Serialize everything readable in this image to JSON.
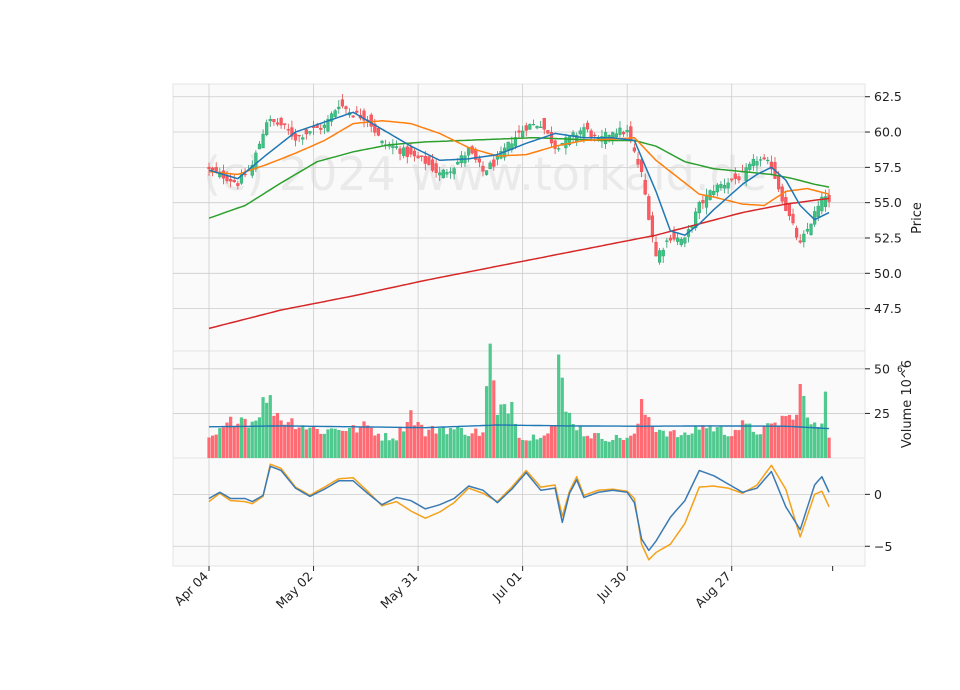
{
  "chart_data": {
    "type": "candlestick",
    "watermark": "(c) 2024 www.torkaid.de",
    "x_tick_labels": [
      "Apr 04",
      "May 02",
      "May 31",
      "Jul 01",
      "Jul 30",
      "Aug 27"
    ],
    "x_tick_index": [
      0,
      29,
      58,
      87,
      116,
      145
    ],
    "n_bars": 173,
    "colors": {
      "up": "#26a69a",
      "up_fill": "#3cc382",
      "down": "#ef5350",
      "down_fill": "#ff5a64",
      "ma_fast": "#1f77b4",
      "ma_mid": "#ff7f0e",
      "ma_slow": "#2ca02c",
      "ma_long": "#d62728",
      "osc_a": "#3b7ab3",
      "osc_b": "#f5a11a",
      "grid": "#cccccc",
      "panel_bg": "#fafafa"
    },
    "price_panel": {
      "ylabel": "Price",
      "ylim": [
        44.5,
        63.4
      ],
      "ticks": [
        62.5,
        60.0,
        57.5,
        55.0,
        52.5,
        50.0,
        47.5
      ],
      "tick_labels": [
        "62.5",
        "60.0",
        "57.5",
        "55.0",
        "52.5",
        "50.0",
        "47.5"
      ],
      "close_keyframes": [
        [
          0,
          57.3
        ],
        [
          4,
          56.9
        ],
        [
          8,
          56.4
        ],
        [
          12,
          57.6
        ],
        [
          16,
          60.8
        ],
        [
          20,
          60.5
        ],
        [
          24,
          59.6
        ],
        [
          28,
          60.1
        ],
        [
          32,
          60.4
        ],
        [
          36,
          62.0
        ],
        [
          40,
          61.3
        ],
        [
          44,
          61.0
        ],
        [
          48,
          59.2
        ],
        [
          52,
          58.9
        ],
        [
          56,
          58.3
        ],
        [
          60,
          57.9
        ],
        [
          64,
          57.0
        ],
        [
          68,
          57.6
        ],
        [
          72,
          58.7
        ],
        [
          76,
          57.2
        ],
        [
          80,
          58.0
        ],
        [
          84,
          59.4
        ],
        [
          88,
          60.4
        ],
        [
          92,
          60.6
        ],
        [
          96,
          59.0
        ],
        [
          100,
          59.5
        ],
        [
          104,
          60.3
        ],
        [
          108,
          59.3
        ],
        [
          112,
          60.1
        ],
        [
          116,
          60.0
        ],
        [
          120,
          57.0
        ],
        [
          124,
          51.2
        ],
        [
          128,
          52.6
        ],
        [
          132,
          52.3
        ],
        [
          136,
          54.8
        ],
        [
          140,
          56.0
        ],
        [
          144,
          56.5
        ],
        [
          148,
          56.9
        ],
        [
          152,
          58.1
        ],
        [
          156,
          57.6
        ],
        [
          160,
          54.6
        ],
        [
          164,
          52.0
        ],
        [
          168,
          54.2
        ],
        [
          171,
          55.6
        ],
        [
          172,
          54.9
        ]
      ],
      "ma_fast_keyframes": [
        [
          0,
          57.3
        ],
        [
          8,
          56.7
        ],
        [
          16,
          58.4
        ],
        [
          24,
          60.0
        ],
        [
          32,
          60.7
        ],
        [
          40,
          61.4
        ],
        [
          48,
          60.2
        ],
        [
          56,
          59.0
        ],
        [
          64,
          58.0
        ],
        [
          72,
          58.1
        ],
        [
          80,
          58.4
        ],
        [
          88,
          59.2
        ],
        [
          96,
          59.9
        ],
        [
          104,
          59.6
        ],
        [
          112,
          59.6
        ],
        [
          118,
          59.4
        ],
        [
          124,
          55.8
        ],
        [
          128,
          53.0
        ],
        [
          132,
          52.7
        ],
        [
          136,
          53.5
        ],
        [
          140,
          54.5
        ],
        [
          144,
          55.4
        ],
        [
          148,
          56.3
        ],
        [
          152,
          57.0
        ],
        [
          156,
          57.5
        ],
        [
          160,
          56.6
        ],
        [
          164,
          54.8
        ],
        [
          168,
          53.8
        ],
        [
          172,
          54.3
        ]
      ],
      "ma_mid_keyframes": [
        [
          0,
          57.2
        ],
        [
          8,
          57.0
        ],
        [
          16,
          57.7
        ],
        [
          24,
          58.5
        ],
        [
          32,
          59.4
        ],
        [
          40,
          60.6
        ],
        [
          48,
          60.8
        ],
        [
          56,
          60.6
        ],
        [
          64,
          59.9
        ],
        [
          72,
          58.9
        ],
        [
          80,
          58.3
        ],
        [
          88,
          58.4
        ],
        [
          96,
          59.0
        ],
        [
          104,
          59.4
        ],
        [
          112,
          59.5
        ],
        [
          118,
          59.6
        ],
        [
          124,
          58.0
        ],
        [
          130,
          56.8
        ],
        [
          136,
          55.6
        ],
        [
          140,
          55.4
        ],
        [
          148,
          54.9
        ],
        [
          154,
          54.8
        ],
        [
          160,
          55.8
        ],
        [
          166,
          56.0
        ],
        [
          172,
          55.6
        ]
      ],
      "ma_slow_keyframes": [
        [
          0,
          53.9
        ],
        [
          10,
          54.8
        ],
        [
          20,
          56.4
        ],
        [
          30,
          57.9
        ],
        [
          40,
          58.6
        ],
        [
          50,
          59.1
        ],
        [
          60,
          59.3
        ],
        [
          70,
          59.4
        ],
        [
          80,
          59.5
        ],
        [
          90,
          59.6
        ],
        [
          100,
          59.5
        ],
        [
          110,
          59.4
        ],
        [
          118,
          59.4
        ],
        [
          124,
          59.0
        ],
        [
          132,
          57.9
        ],
        [
          140,
          57.4
        ],
        [
          148,
          57.2
        ],
        [
          156,
          57.0
        ],
        [
          162,
          56.7
        ],
        [
          168,
          56.3
        ],
        [
          172,
          56.1
        ]
      ],
      "ma_long_keyframes": [
        [
          0,
          46.1
        ],
        [
          20,
          47.4
        ],
        [
          40,
          48.4
        ],
        [
          60,
          49.5
        ],
        [
          80,
          50.5
        ],
        [
          100,
          51.5
        ],
        [
          112,
          52.1
        ],
        [
          124,
          52.7
        ],
        [
          136,
          53.5
        ],
        [
          148,
          54.3
        ],
        [
          160,
          54.9
        ],
        [
          172,
          55.3
        ]
      ]
    },
    "volume_panel": {
      "ylabel": "Volume  10^6",
      "ylim": [
        0,
        60
      ],
      "ticks": [
        50,
        25
      ],
      "tick_labels": [
        "50",
        "25"
      ],
      "volume_keyframes": [
        [
          0,
          10
        ],
        [
          4,
          16
        ],
        [
          8,
          24
        ],
        [
          12,
          20
        ],
        [
          16,
          34
        ],
        [
          20,
          22
        ],
        [
          24,
          20
        ],
        [
          28,
          17
        ],
        [
          32,
          15
        ],
        [
          36,
          17
        ],
        [
          40,
          16
        ],
        [
          44,
          18
        ],
        [
          48,
          12
        ],
        [
          52,
          12
        ],
        [
          56,
          25
        ],
        [
          60,
          14
        ],
        [
          64,
          17
        ],
        [
          68,
          16
        ],
        [
          72,
          15
        ],
        [
          76,
          14
        ],
        [
          78,
          60
        ],
        [
          80,
          22
        ],
        [
          82,
          30
        ],
        [
          84,
          31
        ],
        [
          86,
          14
        ],
        [
          88,
          10
        ],
        [
          92,
          14
        ],
        [
          96,
          19
        ],
        [
          97,
          53
        ],
        [
          99,
          26
        ],
        [
          104,
          14
        ],
        [
          108,
          12
        ],
        [
          112,
          11
        ],
        [
          118,
          12
        ],
        [
          120,
          28
        ],
        [
          124,
          17
        ],
        [
          128,
          14
        ],
        [
          132,
          12
        ],
        [
          136,
          18
        ],
        [
          140,
          17
        ],
        [
          144,
          14
        ],
        [
          148,
          18
        ],
        [
          152,
          15
        ],
        [
          156,
          17
        ],
        [
          160,
          24
        ],
        [
          162,
          20
        ],
        [
          164,
          40
        ],
        [
          166,
          22
        ],
        [
          168,
          17
        ],
        [
          170,
          21
        ],
        [
          171,
          43
        ],
        [
          172,
          14
        ]
      ],
      "avg_keyframes": [
        [
          0,
          17.5
        ],
        [
          20,
          18.0
        ],
        [
          40,
          17.5
        ],
        [
          60,
          17.0
        ],
        [
          80,
          18.5
        ],
        [
          100,
          18.0
        ],
        [
          120,
          17.8
        ],
        [
          140,
          18.0
        ],
        [
          160,
          17.8
        ],
        [
          172,
          16.5
        ]
      ]
    },
    "oscillator_panel": {
      "ylim": [
        -6.9,
        3.5
      ],
      "ticks": [
        0,
        -5
      ],
      "tick_labels": [
        "0",
        "−5"
      ],
      "osc_a_keyframes": [
        [
          0,
          -0.4
        ],
        [
          3,
          0.2
        ],
        [
          6,
          -0.4
        ],
        [
          10,
          -0.4
        ],
        [
          12,
          -0.7
        ],
        [
          15,
          -0.1
        ],
        [
          17,
          2.7
        ],
        [
          20,
          2.3
        ],
        [
          24,
          0.6
        ],
        [
          28,
          -0.2
        ],
        [
          32,
          0.5
        ],
        [
          36,
          1.3
        ],
        [
          40,
          1.3
        ],
        [
          44,
          0.1
        ],
        [
          48,
          -1.0
        ],
        [
          52,
          -0.3
        ],
        [
          56,
          -0.6
        ],
        [
          60,
          -1.4
        ],
        [
          64,
          -1.0
        ],
        [
          68,
          -0.4
        ],
        [
          72,
          0.8
        ],
        [
          76,
          0.4
        ],
        [
          80,
          -0.8
        ],
        [
          84,
          0.5
        ],
        [
          88,
          2.1
        ],
        [
          92,
          0.4
        ],
        [
          96,
          0.6
        ],
        [
          98,
          -2.7
        ],
        [
          100,
          0.1
        ],
        [
          102,
          1.4
        ],
        [
          104,
          -0.3
        ],
        [
          108,
          0.2
        ],
        [
          112,
          0.4
        ],
        [
          116,
          0.2
        ],
        [
          118,
          -0.8
        ],
        [
          120,
          -4.3
        ],
        [
          122,
          -5.4
        ],
        [
          124,
          -4.5
        ],
        [
          128,
          -2.2
        ],
        [
          132,
          -0.6
        ],
        [
          136,
          2.3
        ],
        [
          140,
          1.8
        ],
        [
          144,
          1.0
        ],
        [
          148,
          0.2
        ],
        [
          152,
          0.6
        ],
        [
          156,
          2.2
        ],
        [
          160,
          -1.2
        ],
        [
          164,
          -3.4
        ],
        [
          168,
          0.9
        ],
        [
          170,
          1.7
        ],
        [
          172,
          0.2
        ]
      ],
      "osc_b_keyframes": [
        [
          0,
          -0.7
        ],
        [
          3,
          0.1
        ],
        [
          6,
          -0.6
        ],
        [
          10,
          -0.7
        ],
        [
          12,
          -0.9
        ],
        [
          15,
          -0.2
        ],
        [
          17,
          2.9
        ],
        [
          20,
          2.5
        ],
        [
          24,
          0.7
        ],
        [
          28,
          -0.1
        ],
        [
          32,
          0.7
        ],
        [
          36,
          1.5
        ],
        [
          40,
          1.6
        ],
        [
          44,
          0.3
        ],
        [
          48,
          -1.1
        ],
        [
          52,
          -0.7
        ],
        [
          56,
          -1.6
        ],
        [
          60,
          -2.3
        ],
        [
          64,
          -1.7
        ],
        [
          68,
          -0.8
        ],
        [
          72,
          0.6
        ],
        [
          76,
          0.1
        ],
        [
          80,
          -0.7
        ],
        [
          84,
          0.7
        ],
        [
          88,
          2.3
        ],
        [
          92,
          0.7
        ],
        [
          96,
          0.9
        ],
        [
          98,
          -2.1
        ],
        [
          100,
          0.3
        ],
        [
          102,
          1.7
        ],
        [
          104,
          -0.1
        ],
        [
          108,
          0.4
        ],
        [
          112,
          0.5
        ],
        [
          116,
          0.3
        ],
        [
          118,
          -0.4
        ],
        [
          120,
          -4.8
        ],
        [
          122,
          -6.3
        ],
        [
          124,
          -5.6
        ],
        [
          128,
          -4.8
        ],
        [
          132,
          -2.8
        ],
        [
          136,
          0.7
        ],
        [
          140,
          0.8
        ],
        [
          144,
          0.6
        ],
        [
          148,
          0.1
        ],
        [
          152,
          0.9
        ],
        [
          156,
          2.8
        ],
        [
          160,
          0.5
        ],
        [
          164,
          -4.1
        ],
        [
          168,
          0.0
        ],
        [
          170,
          0.3
        ],
        [
          172,
          -1.2
        ]
      ]
    }
  }
}
